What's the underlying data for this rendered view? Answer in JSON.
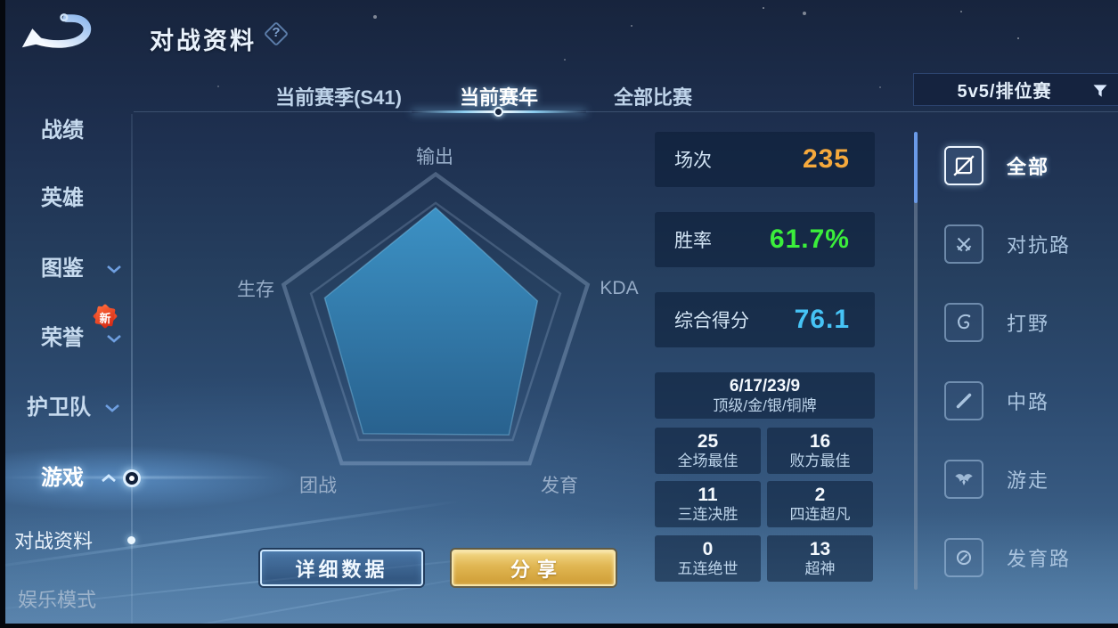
{
  "header": {
    "title": "对战资料",
    "help": "?"
  },
  "tabs": {
    "items": [
      {
        "label": "当前赛季(S41)",
        "active": false
      },
      {
        "label": "当前赛年",
        "active": true
      },
      {
        "label": "全部比赛",
        "active": false
      }
    ]
  },
  "filter": {
    "value": "5v5/排位赛",
    "icon": "funnel-filter-icon"
  },
  "sidebar": {
    "items": [
      {
        "label": "战绩"
      },
      {
        "label": "英雄"
      },
      {
        "label": "图鉴",
        "chevron": "down"
      },
      {
        "label": "荣誉",
        "chevron": "down",
        "badge": "新"
      },
      {
        "label": "护卫队",
        "chevron": "down"
      },
      {
        "label": "游戏",
        "chevron": "up",
        "active": true
      },
      {
        "label": "对战资料",
        "current": true
      },
      {
        "label": "娱乐模式"
      }
    ]
  },
  "chart_data": {
    "type": "radar",
    "axes": [
      "输出",
      "KDA",
      "发育",
      "团战",
      "生存"
    ],
    "values_pct": [
      79,
      67,
      78,
      77,
      73
    ],
    "max": 100,
    "rings_pct": [
      100,
      82
    ],
    "fill_top": "#3d95c9",
    "fill_bottom": "#28628f",
    "ring_color": "rgba(190,215,245,0.28)"
  },
  "stats": {
    "rows": [
      {
        "label": "场次",
        "value": "235",
        "color": "#f6a93c"
      },
      {
        "label": "胜率",
        "value": "61.7%",
        "color": "#3bee3b"
      },
      {
        "label": "综合得分",
        "value": "76.1",
        "color": "#46c3f5"
      }
    ]
  },
  "medals": {
    "counts": "6/17/23/9",
    "label": "顶级/金/银/铜牌",
    "cells": [
      {
        "value": "25",
        "label": "全场最佳"
      },
      {
        "value": "16",
        "label": "败方最佳"
      },
      {
        "value": "11",
        "label": "三连决胜"
      },
      {
        "value": "2",
        "label": "四连超凡"
      },
      {
        "value": "0",
        "label": "五连绝世"
      },
      {
        "value": "13",
        "label": "超神"
      }
    ]
  },
  "buttons": {
    "detail": "详细数据",
    "share": "分享"
  },
  "lanes": {
    "items": [
      {
        "label": "全部",
        "icon": "all-lanes-icon",
        "active": true
      },
      {
        "label": "对抗路",
        "icon": "clash-lane-icon",
        "active": false
      },
      {
        "label": "打野",
        "icon": "jungle-icon",
        "active": false
      },
      {
        "label": "中路",
        "icon": "mid-lane-icon",
        "active": false
      },
      {
        "label": "游走",
        "icon": "roam-icon",
        "active": false
      },
      {
        "label": "发育路",
        "icon": "farm-lane-icon",
        "active": false
      }
    ]
  }
}
